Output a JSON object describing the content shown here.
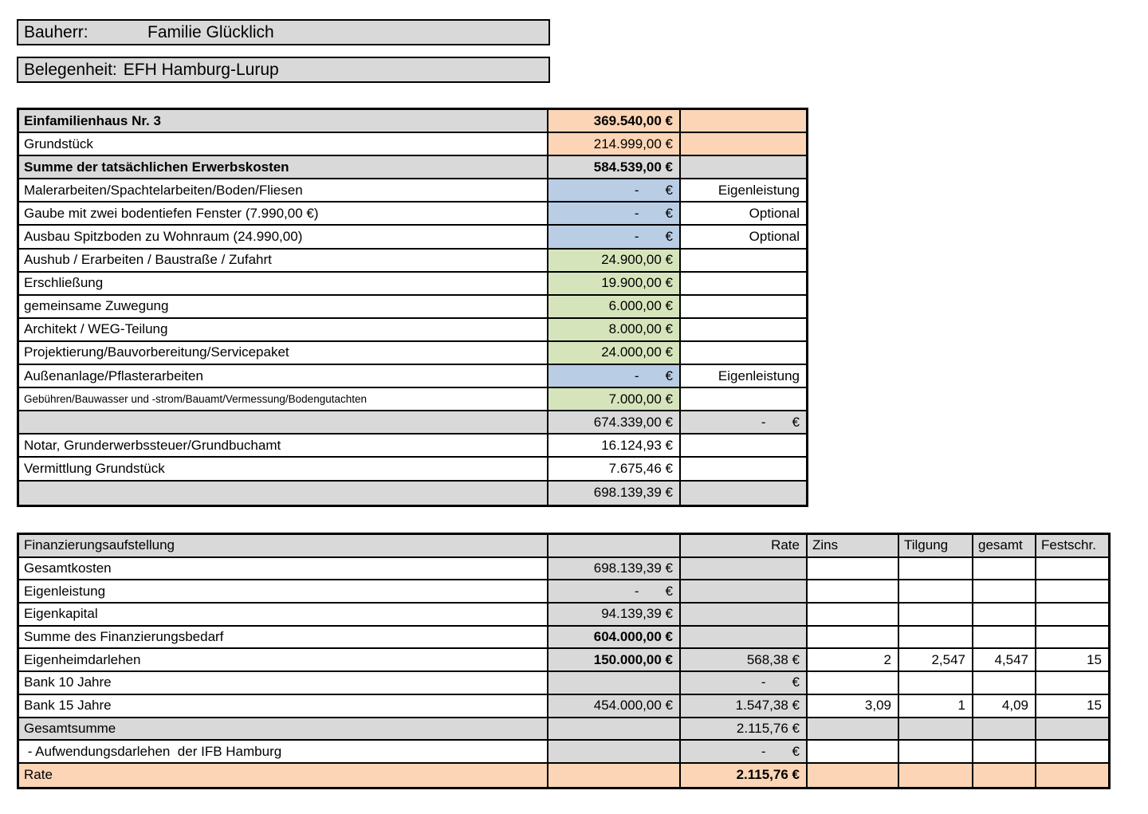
{
  "page_header": {
    "bauherr_label": "Bauherr:",
    "bauherr_value": "Familie Glücklich",
    "belegenheit_label": "Belegenheit:",
    "belegenheit_value": "EFH Hamburg-Lurup"
  },
  "colors": {
    "cell_gray": "#D9D9D9",
    "cell_orange": "#FBD5B5",
    "cell_blue": "#B9CDE5",
    "cell_green": "#D6E4BC",
    "border": "#000000"
  },
  "cost_table": {
    "rows": [
      {
        "label": "Einfamilienhaus Nr. 3",
        "amount": "369.540,00 €",
        "note": ""
      },
      {
        "label": "Grundstück",
        "amount": "214.999,00 €",
        "note": ""
      },
      {
        "label": "Summe der tatsächlichen Erwerbskosten",
        "amount": "584.539,00 €",
        "note": ""
      },
      {
        "label": "Malerarbeiten/Spachtelarbeiten/Boden/Fliesen",
        "amount": "-       €",
        "note": "Eigenleistung"
      },
      {
        "label": "Gaube mit zwei bodentiefen Fenster (7.990,00 €)",
        "amount": "-       €",
        "note": "Optional"
      },
      {
        "label": "Ausbau Spitzboden zu Wohnraum (24.990,00)",
        "amount": "-       €",
        "note": "Optional"
      },
      {
        "label": "Aushub / Erarbeiten / Baustraße / Zufahrt",
        "amount": "24.900,00 €",
        "note": ""
      },
      {
        "label": "Erschließung",
        "amount": "19.900,00 €",
        "note": ""
      },
      {
        "label": "gemeinsame Zuwegung",
        "amount": "6.000,00 €",
        "note": ""
      },
      {
        "label": "Architekt / WEG-Teilung",
        "amount": "8.000,00 €",
        "note": ""
      },
      {
        "label": "Projektierung/Bauvorbereitung/Servicepaket",
        "amount": "24.000,00 €",
        "note": ""
      },
      {
        "label": "Außenanlage/Pflasterarbeiten",
        "amount": "-       €",
        "note": "Eigenleistung"
      },
      {
        "label": "Gebühren/Bauwasser und -strom/Bauamt/Vermessung/Bodengutachten",
        "amount": "7.000,00 €",
        "note": ""
      },
      {
        "label": "",
        "amount": "674.339,00 €",
        "note": "-       €"
      },
      {
        "label": "Notar, Grunderwerbssteuer/Grundbuchamt",
        "amount": "16.124,93 €",
        "note": ""
      },
      {
        "label": "Vermittlung Grundstück",
        "amount": "7.675,46 €",
        "note": ""
      },
      {
        "label": "",
        "amount": "698.139,39 €",
        "note": ""
      }
    ]
  },
  "finance_table": {
    "headers": {
      "title": "Finanzierungsaufstellung",
      "rate": "Rate",
      "zins": "Zins",
      "tilgung": "Tilgung",
      "gesamt": "gesamt",
      "festschr": "Festschr."
    },
    "rows": [
      {
        "label": "Gesamtkosten",
        "amount": "698.139,39 €",
        "rate": "",
        "zins": "",
        "tilgung": "",
        "gesamt": "",
        "festschr": ""
      },
      {
        "label": "Eigenleistung",
        "amount": "-       €",
        "rate": "",
        "zins": "",
        "tilgung": "",
        "gesamt": "",
        "festschr": ""
      },
      {
        "label": "Eigenkapital",
        "amount": "94.139,39 €",
        "rate": "",
        "zins": "",
        "tilgung": "",
        "gesamt": "",
        "festschr": ""
      },
      {
        "label": "Summe des Finanzierungsbedarf",
        "amount": "604.000,00 €",
        "rate": "",
        "zins": "",
        "tilgung": "",
        "gesamt": "",
        "festschr": ""
      },
      {
        "label": "Eigenheimdarlehen",
        "amount": "150.000,00 €",
        "rate": "568,38 €",
        "zins": "2",
        "tilgung": "2,547",
        "gesamt": "4,547",
        "festschr": "15"
      },
      {
        "label": "Bank 10 Jahre",
        "amount": "",
        "rate": "-       €",
        "zins": "",
        "tilgung": "",
        "gesamt": "",
        "festschr": ""
      },
      {
        "label": "Bank 15 Jahre",
        "amount": "454.000,00 €",
        "rate": "1.547,38 €",
        "zins": "3,09",
        "tilgung": "1",
        "gesamt": "4,09",
        "festschr": "15"
      },
      {
        "label": "Gesamtsumme",
        "amount": "",
        "rate": "2.115,76 €",
        "zins": "",
        "tilgung": "",
        "gesamt": "",
        "festschr": ""
      },
      {
        "label": " - Aufwendungsdarlehen  der IFB Hamburg",
        "amount": "",
        "rate": "-       €",
        "zins": "",
        "tilgung": "",
        "gesamt": "",
        "festschr": ""
      },
      {
        "label": "Rate",
        "amount": "",
        "rate": "2.115,76 €",
        "zins": "",
        "tilgung": "",
        "gesamt": "",
        "festschr": ""
      }
    ]
  }
}
